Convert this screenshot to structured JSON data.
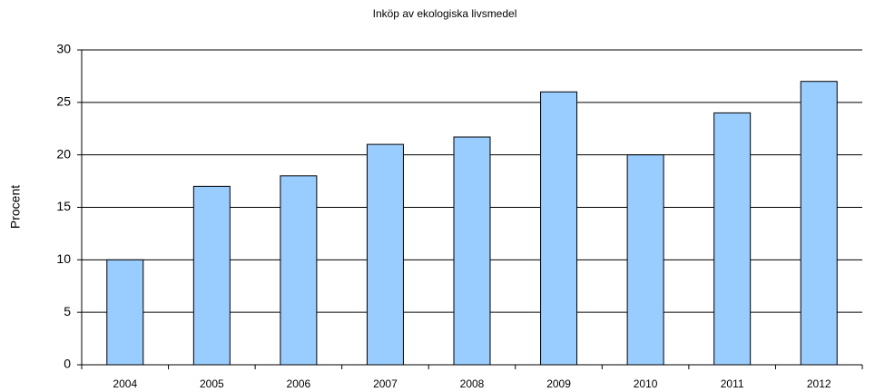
{
  "chart_data": {
    "type": "bar",
    "title": "Inköp av ekologiska livsmedel",
    "y_label": "Procent",
    "categories": [
      "2004",
      "2005",
      "2006",
      "2007",
      "2008",
      "2009",
      "2010",
      "2011",
      "2012"
    ],
    "values": [
      10,
      17,
      18,
      21,
      21.7,
      26,
      20,
      24,
      27
    ],
    "color": "#99ccff",
    "ylim": [
      0,
      30
    ],
    "yticks": [
      0,
      5,
      10,
      15,
      20,
      25,
      30
    ],
    "grid": true
  }
}
